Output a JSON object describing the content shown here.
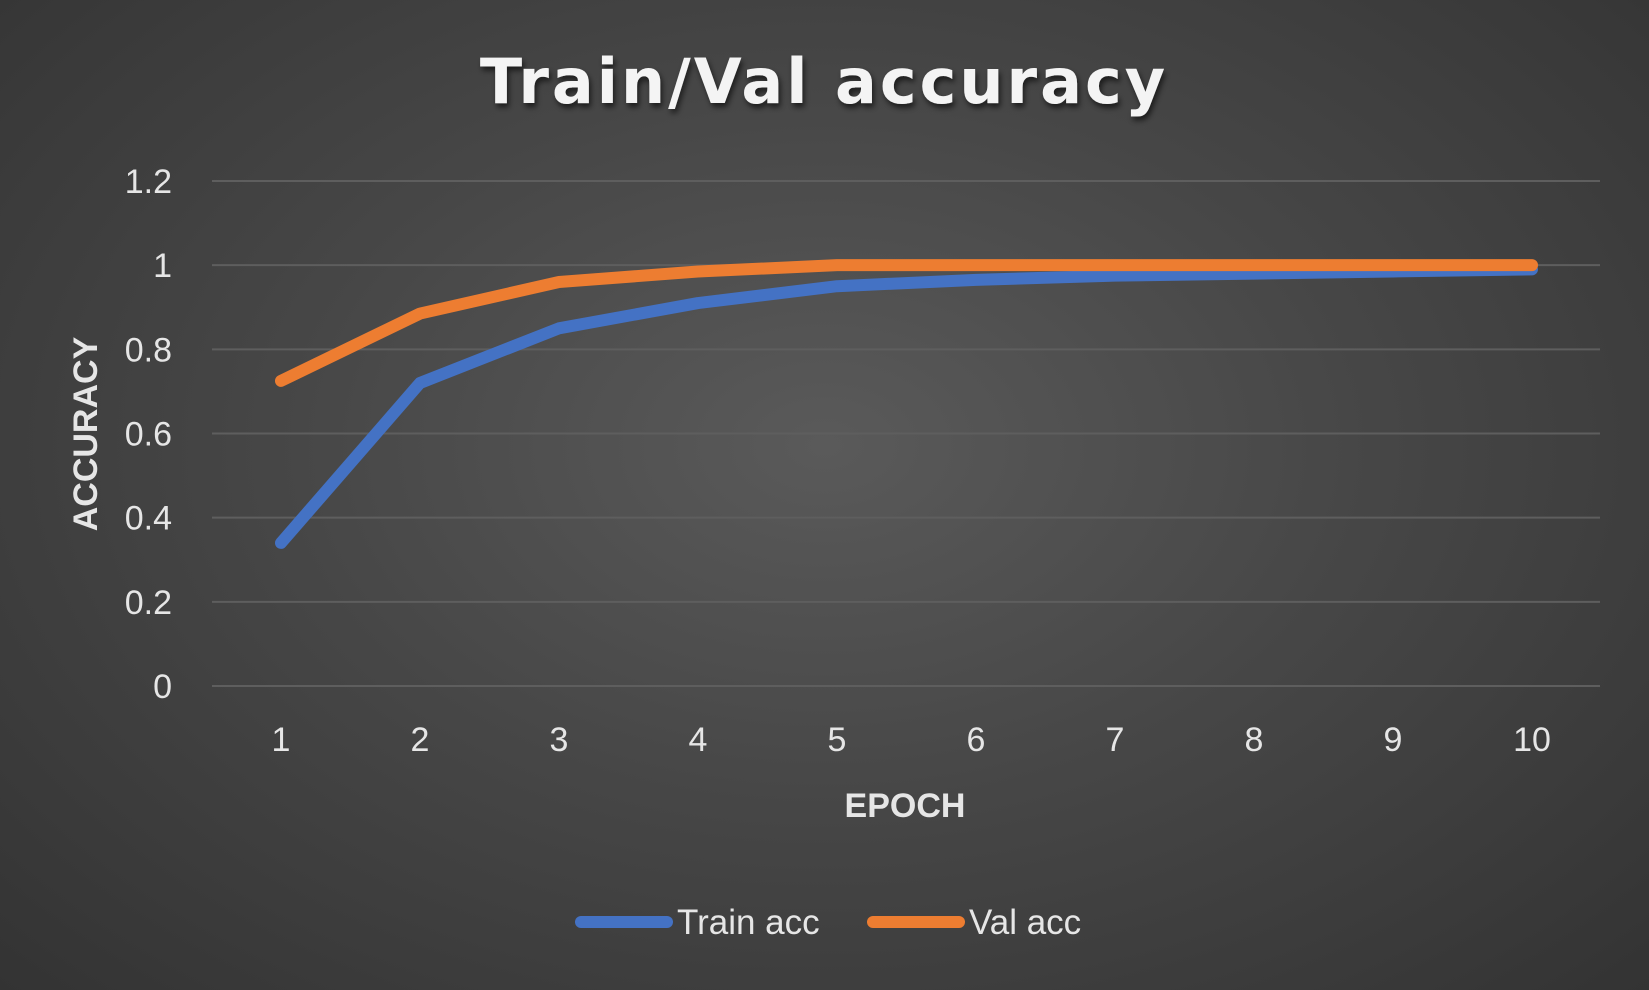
{
  "chart_data": {
    "type": "line",
    "title": "Train/Val accuracy",
    "xlabel": "EPOCH",
    "ylabel": "ACCURACY",
    "categories": [
      "1",
      "2",
      "3",
      "4",
      "5",
      "6",
      "7",
      "8",
      "9",
      "10"
    ],
    "ylim": [
      0,
      1.2
    ],
    "yticks": [
      "0",
      "0.2",
      "0.4",
      "0.6",
      "0.8",
      "1",
      "1.2"
    ],
    "grid": true,
    "legend_position": "bottom",
    "series": [
      {
        "name": "Train acc",
        "color": "#4472c4",
        "values": [
          0.34,
          0.72,
          0.85,
          0.91,
          0.95,
          0.965,
          0.975,
          0.98,
          0.985,
          0.99
        ]
      },
      {
        "name": "Val acc",
        "color": "#ed7d31",
        "values": [
          0.725,
          0.885,
          0.96,
          0.985,
          1.0,
          1.0,
          1.0,
          1.0,
          1.0,
          1.0
        ]
      }
    ]
  }
}
